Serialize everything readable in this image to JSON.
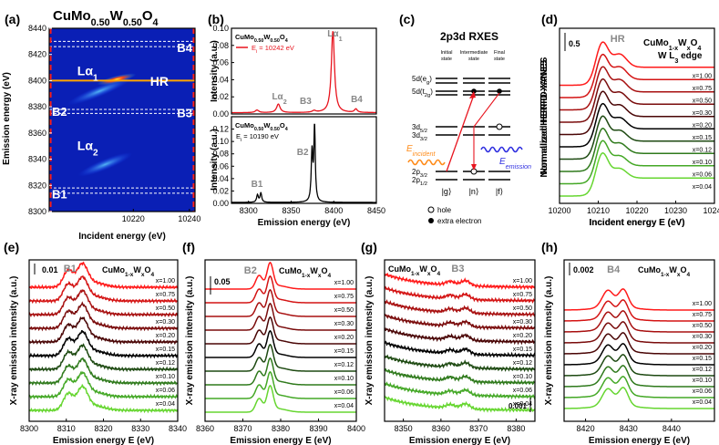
{
  "chart_data": [
    {
      "id": "a",
      "type": "heatmap",
      "panel": "(a)",
      "title": "CuMo",
      "title_sub1": "0.50",
      "title_mid": "W",
      "title_sub2": "0.50",
      "title_end": "O",
      "title_sub3": "4",
      "xlabel": "Incident energy (eV)",
      "ylabel": "Emission energy (eV)",
      "xlim": [
        10190,
        10242
      ],
      "ylim": [
        8300,
        8440
      ],
      "xticks": [
        10220,
        10240
      ],
      "yticks": [
        8300,
        8320,
        8340,
        8360,
        8380,
        8400,
        8420,
        8440
      ],
      "annotations": {
        "la1": "Lα",
        "la1_sub": "1",
        "la2": "Lα",
        "la2_sub": "2",
        "hr": "HR",
        "b1": "B1",
        "b2": "B2",
        "b3": "B3",
        "b4": "B4"
      },
      "emission_line": 8400,
      "colors": {
        "bg": "#0a1fb5",
        "hot": "#ff3b1a",
        "line": "#ffa500",
        "dash_v": "#ff2020",
        "dash_h": "#ffffff"
      }
    },
    {
      "id": "b",
      "type": "line",
      "panel": "(b)",
      "xlabel": "Emission energy (eV)",
      "ylabel": "Intensity (a.u.)",
      "xlim": [
        8280,
        8450
      ],
      "xticks": [
        8300,
        8350,
        8400,
        8450
      ],
      "series": [
        {
          "name": "CuMo0.50W0.50O4",
          "note": "E",
          "note_sub": "i",
          "note_val": " = 10242 eV",
          "color": "#e8141e",
          "ylim": [
            0,
            0.1
          ],
          "yticks": [
            "0.00",
            "0.02",
            "0.04",
            "0.06",
            "0.08",
            "0.10"
          ],
          "peaks": [
            {
              "x": 8310,
              "h": 0.003,
              "w": 2.5
            },
            {
              "x": 8335,
              "h": 0.01,
              "w": 2.5
            },
            {
              "x": 8377,
              "h": 0.002,
              "w": 2.5
            },
            {
              "x": 8399,
              "h": 0.095,
              "w": 2.2
            },
            {
              "x": 8426,
              "h": 0.004,
              "w": 2.0
            }
          ]
        },
        {
          "name": "CuMo0.50W0.50O4",
          "note": "E",
          "note_sub": "i",
          "note_val": " = 10190 eV",
          "color": "#000000",
          "ylim": [
            0,
            0.14
          ],
          "yticks": [
            "0.00",
            "0.02",
            "0.04",
            "0.06",
            "0.08",
            "0.10",
            "0.12"
          ],
          "peaks": [
            {
              "x": 8310.5,
              "h": 0.012,
              "w": 1.2
            },
            {
              "x": 8314.5,
              "h": 0.015,
              "w": 1.2
            },
            {
              "x": 8374.5,
              "h": 0.08,
              "w": 1.1
            },
            {
              "x": 8377.5,
              "h": 0.12,
              "w": 1.0
            }
          ]
        }
      ],
      "annotations": {
        "la1": "Lα",
        "la1_sub": "1",
        "la2": "Lα",
        "la2_sub": "2",
        "b3": "B3",
        "b4": "B4",
        "b1": "B1",
        "b2": "B2"
      },
      "legend_name_parts": {
        "main": "CuMo",
        "s1": "0.50",
        "m": "W",
        "s2": "0.50",
        "e": "O",
        "s3": "4"
      }
    },
    {
      "id": "c",
      "type": "diagram",
      "panel": "(c)",
      "title": "2p3d RXES",
      "columns": [
        [
          "Initial",
          "state"
        ],
        [
          "Intermediate",
          "state"
        ],
        [
          "Final",
          "state"
        ]
      ],
      "levels": {
        "5d_eg": "5d(e",
        "5d_eg_sub": "g",
        "5d_t2g": "5d(t",
        "5d_t2g_sub": "2g",
        "3d52": "3d",
        "3d52_sub": "5/2",
        "3d32": "3d",
        "3d32_sub": "3/2",
        "2p32": "2p",
        "2p32_sub": "3/2",
        "2p12": "2p",
        "2p12_sub": "1/2"
      },
      "incident": "E",
      "incident_sub": "incident",
      "emission": "E",
      "emission_sub": "emission",
      "states": [
        "|g⟩",
        "|n⟩",
        "|f⟩"
      ],
      "legend": [
        "hole",
        "extra electron"
      ]
    },
    {
      "id": "d",
      "type": "line",
      "panel": "(d)",
      "xlabel": "Incident energy E (eV)",
      "ylabel": "Normalized HERFD-XANES",
      "xlim": [
        10200,
        10240
      ],
      "xticks": [
        10200,
        10210,
        10220,
        10230,
        10240
      ],
      "scalebar": "0.5",
      "peak_label": "HR",
      "comp": "CuMo",
      "comp_sub": "1-x",
      "comp_w": "W",
      "comp_sub2": "x",
      "comp_o": "O",
      "comp_sub3": "4",
      "edge": "W L",
      "edge_sub": "3",
      "edge_end": " edge"
    },
    {
      "id": "e",
      "type": "line",
      "panel": "(e)",
      "peak_label": "B1",
      "scalebar": "0.01",
      "xlabel": "Emission energy E (eV)",
      "ylabel": "X-ray emission intensity (a.u.)",
      "xlim": [
        8300,
        8340
      ],
      "xticks": [
        8300,
        8310,
        8320,
        8330,
        8340
      ]
    },
    {
      "id": "f",
      "type": "line",
      "panel": "(f)",
      "peak_label": "B2",
      "scalebar": "0.05",
      "xlabel": "Emission energy E (eV)",
      "ylabel": "X-ray emission intensity (a.u.)",
      "xlim": [
        8360,
        8400
      ],
      "xticks": [
        8360,
        8370,
        8380,
        8390,
        8400
      ]
    },
    {
      "id": "g",
      "type": "line",
      "panel": "(g)",
      "peak_label": "B3",
      "scalebar": "0.001",
      "xlabel": "Emission energy E (eV)",
      "ylabel": "X-ray emission intensity (a.u.)",
      "xlim": [
        8345,
        8385
      ],
      "xticks": [
        8350,
        8360,
        8370,
        8380
      ]
    },
    {
      "id": "h",
      "type": "line",
      "panel": "(h)",
      "peak_label": "B4",
      "scalebar": "0.002",
      "xlabel": "Emission energy E (eV)",
      "ylabel": "X-ray emission intensity (a.u.)",
      "xlim": [
        8415,
        8450
      ],
      "xticks": [
        8420,
        8430,
        8440
      ]
    }
  ],
  "x_values": [
    "x=1.00",
    "x=0.75",
    "x=0.50",
    "x=0.30",
    "x=0.20",
    "x=0.15",
    "x=0.12",
    "x=0.10",
    "x=0.06",
    "x=0.04"
  ],
  "series_colors": [
    "#ff1a1a",
    "#d41414",
    "#a81010",
    "#7a0c0c",
    "#4a0606",
    "#000000",
    "#1e4a12",
    "#2f7a1c",
    "#44a826",
    "#66d630",
    "#8cf03c"
  ],
  "comp_label": {
    "main": "CuMo",
    "s1": "1-x",
    "m": "W",
    "s2": "x",
    "e": "O",
    "s3": "4"
  }
}
